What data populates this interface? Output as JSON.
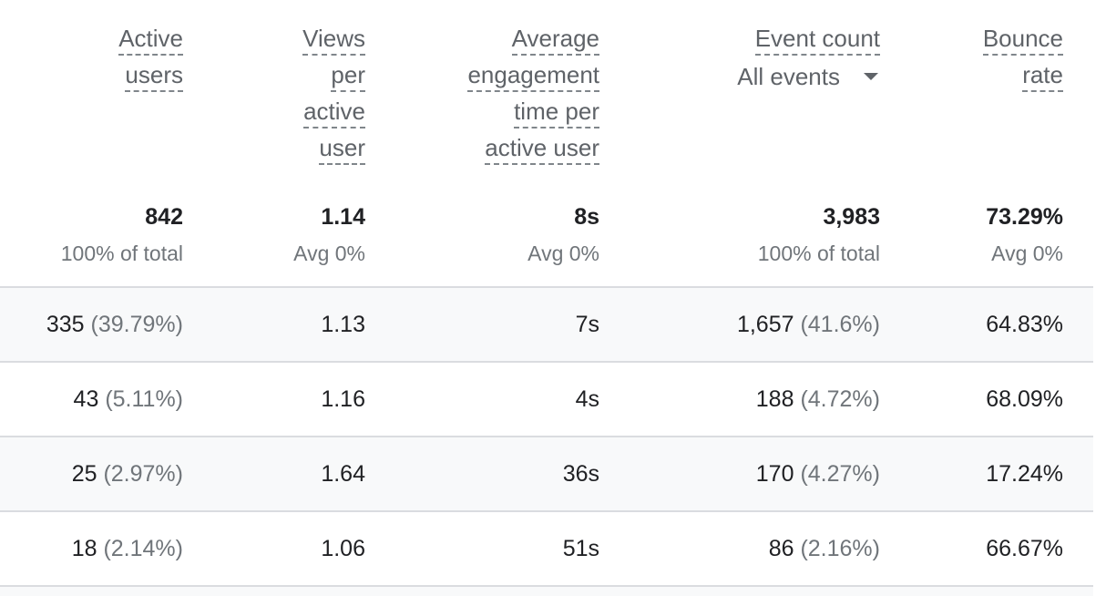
{
  "table": {
    "columns": [
      {
        "key": "active_users",
        "header_lines": [
          "Active",
          "users"
        ]
      },
      {
        "key": "views_per_active_user",
        "header_lines": [
          "Views",
          "per",
          "active",
          "user"
        ]
      },
      {
        "key": "avg_engagement_time",
        "header_lines": [
          "Average",
          "engagement",
          "time per",
          "active user"
        ]
      },
      {
        "key": "event_count",
        "header_lines": [
          "Event count"
        ],
        "dropdown": {
          "selected": "All events",
          "icon": "caret-down-icon"
        }
      },
      {
        "key": "bounce_rate",
        "header_lines": [
          "Bounce",
          "rate"
        ]
      }
    ],
    "totals": [
      {
        "value": "842",
        "sub": "100% of total"
      },
      {
        "value": "1.14",
        "sub": "Avg 0%"
      },
      {
        "value": "8s",
        "sub": "Avg 0%"
      },
      {
        "value": "3,983",
        "sub": "100% of total"
      },
      {
        "value": "73.29%",
        "sub": "Avg 0%"
      }
    ],
    "rows": [
      {
        "active_users": {
          "value": "335",
          "pct": "(39.79%)"
        },
        "views_per_active_user": "1.13",
        "avg_engagement_time": "7s",
        "event_count": {
          "value": "1,657",
          "pct": "(41.6%)"
        },
        "bounce_rate": "64.83%"
      },
      {
        "active_users": {
          "value": "43",
          "pct": "(5.11%)"
        },
        "views_per_active_user": "1.16",
        "avg_engagement_time": "4s",
        "event_count": {
          "value": "188",
          "pct": "(4.72%)"
        },
        "bounce_rate": "68.09%"
      },
      {
        "active_users": {
          "value": "25",
          "pct": "(2.97%)"
        },
        "views_per_active_user": "1.64",
        "avg_engagement_time": "36s",
        "event_count": {
          "value": "170",
          "pct": "(4.27%)"
        },
        "bounce_rate": "17.24%"
      },
      {
        "active_users": {
          "value": "18",
          "pct": "(2.14%)"
        },
        "views_per_active_user": "1.06",
        "avg_engagement_time": "51s",
        "event_count": {
          "value": "86",
          "pct": "(2.16%)"
        },
        "bounce_rate": "66.67%"
      }
    ]
  },
  "colors": {
    "header_text": "#5f6368",
    "body_text": "#202124",
    "secondary_text": "#70757a",
    "row_alt_bg": "#f8f9fa",
    "divider": "#dadce0"
  }
}
